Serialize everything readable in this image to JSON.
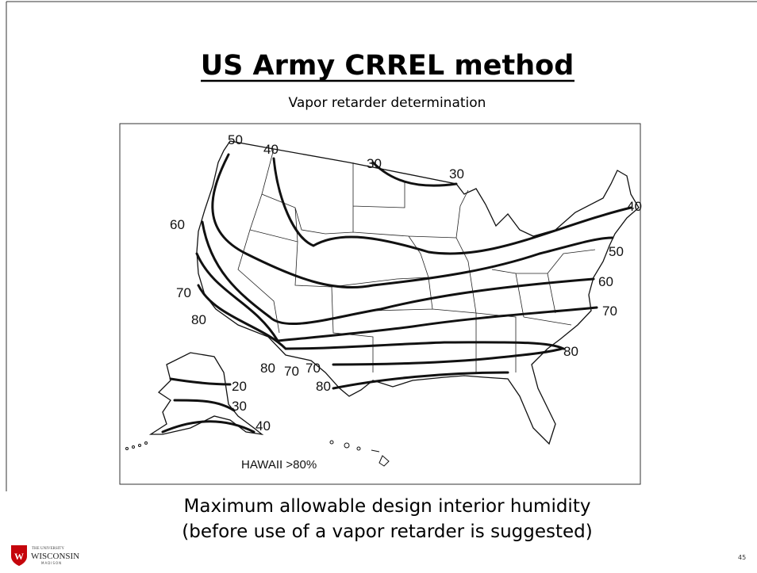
{
  "slide": {
    "title": "US Army CRREL method",
    "subtitle": "Vapor retarder determination",
    "map_labels": [
      "50",
      "40",
      "30",
      "30",
      "60",
      "40",
      "50",
      "60",
      "70",
      "80",
      "70",
      "80",
      "80",
      "70",
      "70",
      "80",
      "20",
      "30",
      "40",
      "HAWAII >80%"
    ],
    "caption": [
      "Maximum allowable design interior humidity",
      "(before use of a vapor retarder is suggested)"
    ],
    "logo": {
      "top": "THE UNIVERSITY",
      "name": "WISCONSIN",
      "bottom": "MADISON"
    },
    "page_number": "45"
  }
}
